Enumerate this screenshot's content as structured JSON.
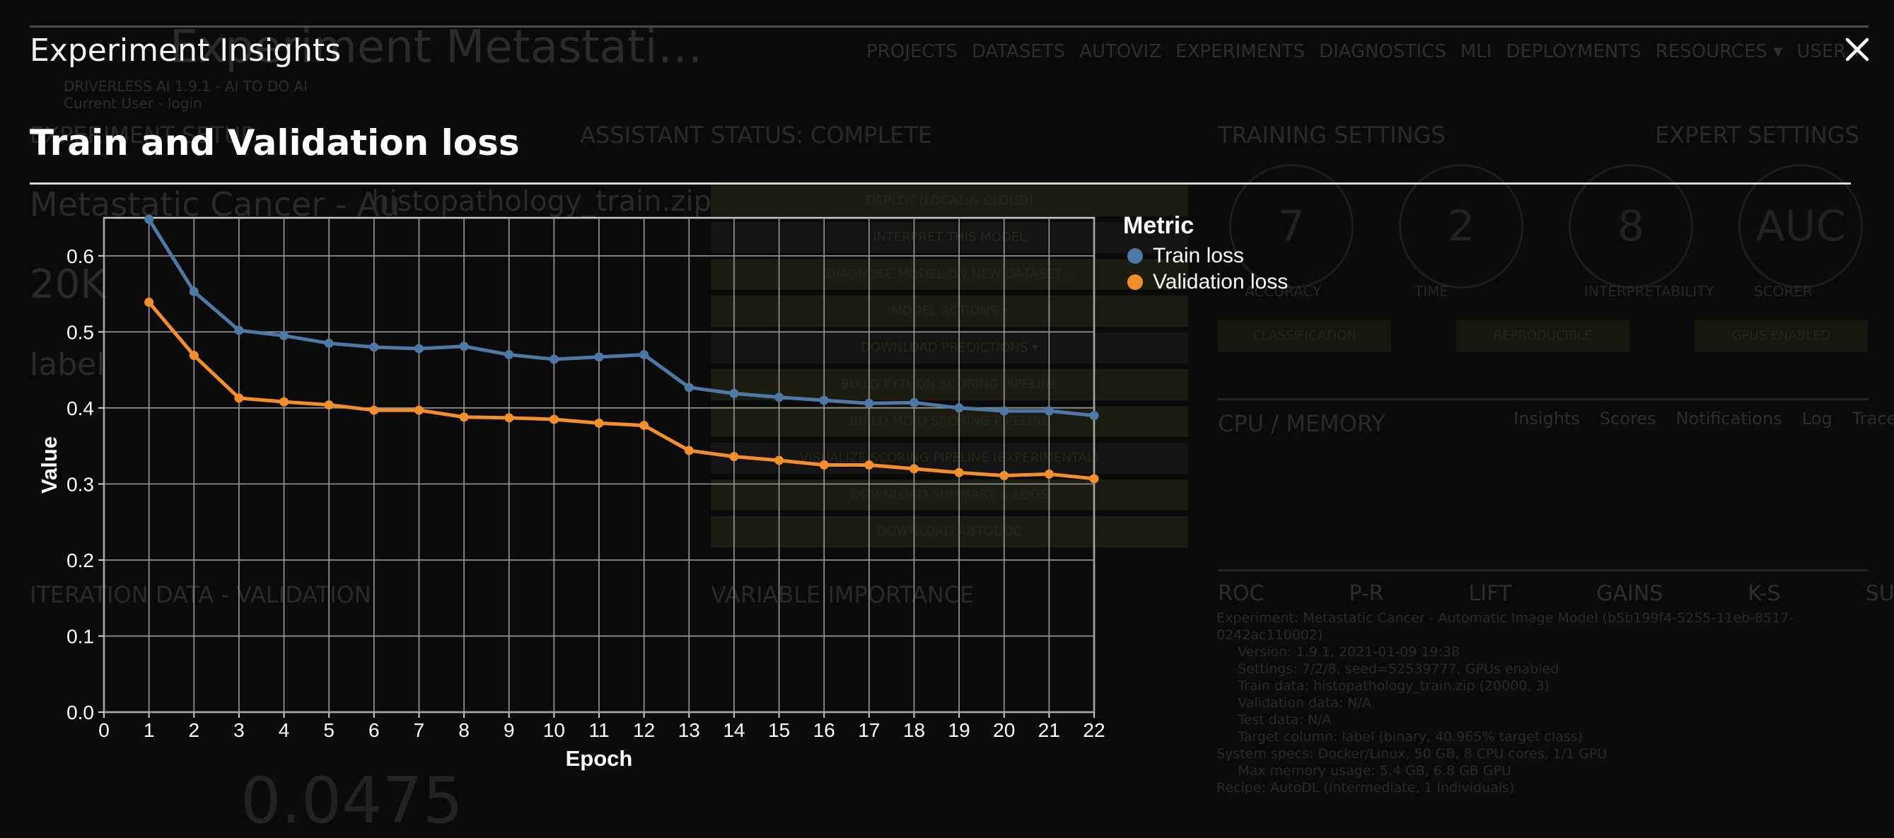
{
  "background": {
    "title": "Experiment Metastati…",
    "nav": [
      "PROJECTS",
      "DATASETS",
      "AUTOVIZ",
      "EXPERIMENTS",
      "DIAGNOSTICS",
      "MLI",
      "DEPLOYMENTS",
      "RESOURCES ▾",
      "USER ▾"
    ],
    "version": "DRIVERLESS AI 1.9.1 - AI TO DO AI",
    "user": "Current User - login",
    "experiment_setup": "EXPERIMENT SETUP",
    "assistant": "ASSISTANT",
    "status": "STATUS: COMPLETE",
    "training_settings": "TRAINING SETTINGS",
    "expert_settings": "EXPERT SETTINGS",
    "display_name": "Metastatic Cancer - Au",
    "training_dataset": "histopathology_train.zip",
    "rows": "20K",
    "target": "label",
    "buttons": [
      "DEPLOY (LOCAL & CLOUD)",
      "INTERPRET THIS MODEL",
      "DIAGNOSE MODEL ON NEW DATASET...",
      "MODEL ACTIONS ▾",
      "DOWNLOAD PREDICTIONS ▾",
      "BUILD PYTHON SCORING PIPELINE",
      "BUILD MOJO SCORING PIPELINE",
      "VISUALIZE SCORING PIPELINE (EXPERIMENTAL)",
      "DOWNLOAD SUMMARY & LOGS",
      "DOWNLOAD AUTODOC"
    ],
    "dials": [
      {
        "value": "7",
        "label": "ACCURACY"
      },
      {
        "value": "2",
        "label": "TIME"
      },
      {
        "value": "8",
        "label": "INTERPRETABILITY"
      },
      {
        "value": "AUC",
        "label": "SCORER"
      }
    ],
    "tags": [
      "CLASSIFICATION",
      "REPRODUCIBLE",
      "GPUS ENABLED"
    ],
    "cpu_memory": "CPU / MEMORY",
    "tabs": [
      "Insights",
      "Scores",
      "Notifications",
      "Log",
      "Trace"
    ],
    "iteration": "ITERATION DATA - VALIDATION",
    "variable_importance": "VARIABLE IMPORTANCE",
    "roc_tabs": [
      "ROC",
      "P-R",
      "LIFT",
      "GAINS",
      "K-S",
      "SUMMARY"
    ],
    "summary": "Experiment: Metastatic Cancer - Automatic Image Model (b5b199f4-5255-11eb-8517-\n0242ac110002)\n     Version: 1.9.1, 2021-01-09 19:38\n     Settings: 7/2/8, seed=52539777, GPUs enabled\n     Train data: histopathology_train.zip (20000, 3)\n     Validation data: N/A\n     Test data: N/A\n     Target column: label (binary, 40.965% target class)\nSystem specs: Docker/Linux, 50 GB, 8 CPU cores, 1/1 GPU\n     Max memory usage: 5.4 GB, 6.8 GB GPU\nRecipe: AutoDL (Intermediate, 1 Individuals)",
    "big_number": "0.0475"
  },
  "modal": {
    "title": "Experiment Insights",
    "close_glyph": "✕",
    "chart_title": "Train and Validation loss"
  },
  "chart_data": {
    "type": "line",
    "xlabel": "Epoch",
    "ylabel": "Value",
    "x_ticks": [
      0,
      1,
      2,
      3,
      4,
      5,
      6,
      7,
      8,
      9,
      10,
      11,
      12,
      13,
      14,
      15,
      16,
      17,
      18,
      19,
      20,
      21,
      22
    ],
    "y_ticks": [
      "0.0",
      "0.1",
      "0.2",
      "0.3",
      "0.4",
      "0.5",
      "0.6"
    ],
    "xlim": [
      0,
      22
    ],
    "ylim": [
      0,
      0.65
    ],
    "legend_title": "Metric",
    "legend_position": "right",
    "x": [
      1,
      2,
      3,
      4,
      5,
      6,
      7,
      8,
      9,
      10,
      11,
      12,
      13,
      14,
      15,
      16,
      17,
      18,
      19,
      20,
      21,
      22
    ],
    "series": [
      {
        "name": "Train loss",
        "color": "#4e79a7",
        "values": [
          0.648,
          0.553,
          0.502,
          0.495,
          0.485,
          0.48,
          0.478,
          0.481,
          0.47,
          0.464,
          0.467,
          0.47,
          0.427,
          0.419,
          0.414,
          0.41,
          0.406,
          0.407,
          0.4,
          0.396,
          0.396,
          0.39
        ]
      },
      {
        "name": "Validation loss",
        "color": "#f28e2b",
        "values": [
          0.539,
          0.469,
          0.413,
          0.408,
          0.404,
          0.397,
          0.397,
          0.388,
          0.387,
          0.385,
          0.38,
          0.377,
          0.344,
          0.336,
          0.331,
          0.325,
          0.325,
          0.32,
          0.315,
          0.311,
          0.313,
          0.307
        ]
      }
    ]
  }
}
